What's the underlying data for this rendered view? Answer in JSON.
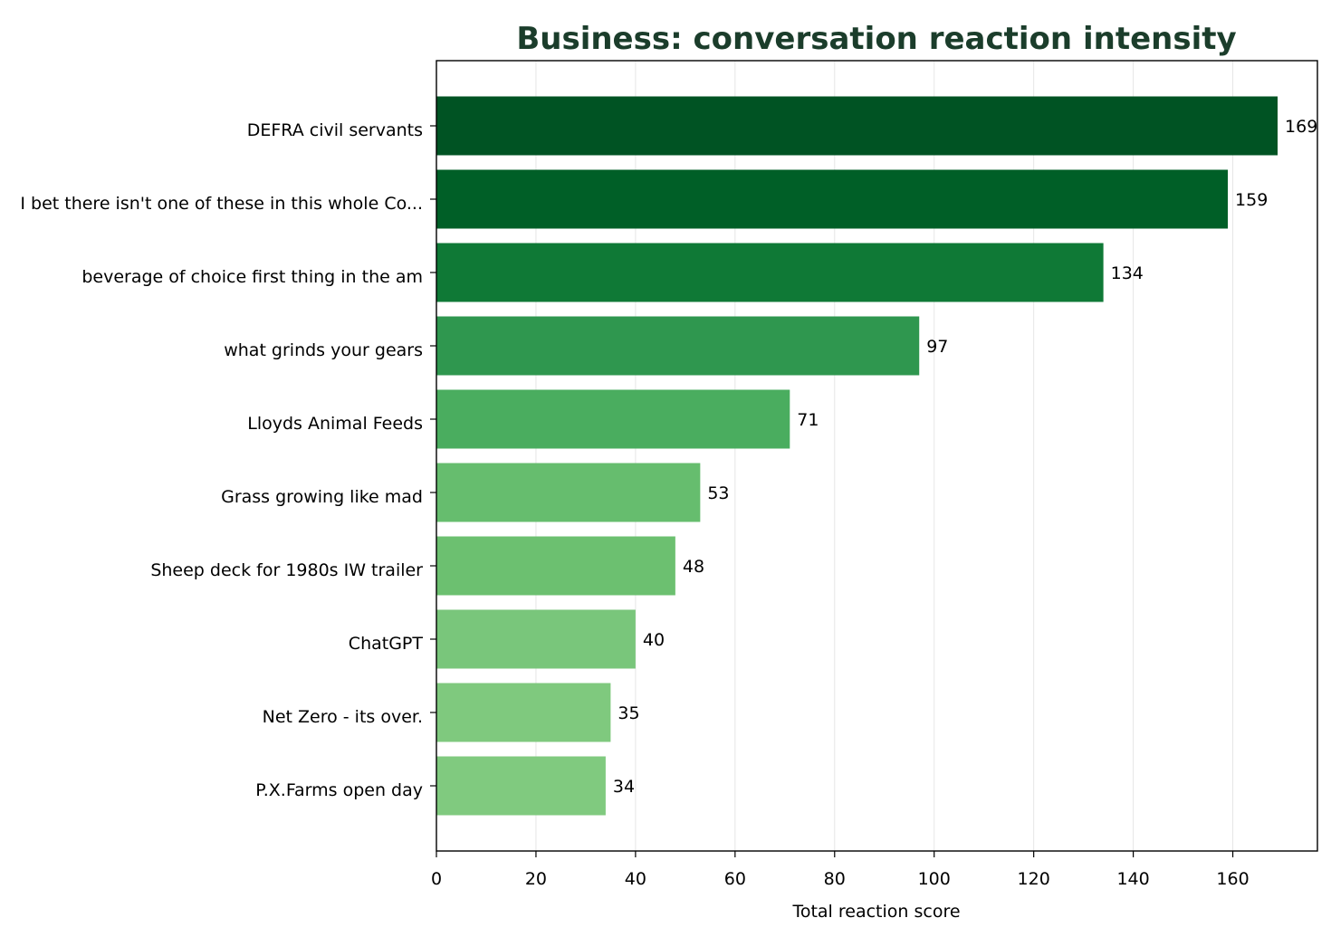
{
  "chart_data": {
    "type": "bar",
    "orientation": "horizontal",
    "title": "Business: conversation reaction intensity",
    "xlabel": "Total reaction score",
    "ylabel": "",
    "xlim": [
      0,
      177
    ],
    "xticks": [
      0,
      20,
      40,
      60,
      80,
      100,
      120,
      140,
      160
    ],
    "grid": "vertical",
    "categories": [
      "DEFRA civil servants",
      "I bet there isn't one of these in this whole Co...",
      "beverage of choice first thing in the am",
      "what grinds your gears",
      "Lloyds Animal Feeds",
      "Grass growing like mad",
      "Sheep deck for 1980s IW trailer",
      "ChatGPT",
      "Net Zero - its over.",
      "P.X.Farms open day"
    ],
    "values": [
      169,
      159,
      134,
      97,
      71,
      53,
      48,
      40,
      35,
      34
    ],
    "colors": [
      "#005323",
      "#005f27",
      "#0f7936",
      "#2f974f",
      "#4aad5f",
      "#66bd6e",
      "#6cc070",
      "#79c67b",
      "#7fc97e",
      "#80ca7f"
    ]
  }
}
